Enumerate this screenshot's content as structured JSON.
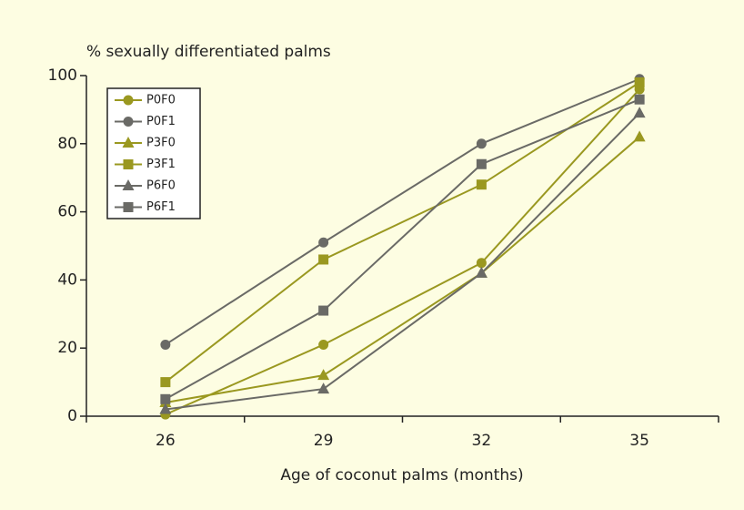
{
  "chart_data": {
    "type": "line",
    "title": "% sexually differentiated palms",
    "x_label": "Age of coconut palms (months)",
    "categories": [
      "26",
      "29",
      "32",
      "35"
    ],
    "ylim": [
      0,
      100
    ],
    "yticks": [
      0,
      20,
      40,
      60,
      80,
      100
    ],
    "grid": false,
    "legend": "upper left",
    "series": [
      {
        "name": "P0F0",
        "color": "#9a9820",
        "marker": "circle",
        "values": [
          0.5,
          21,
          45,
          96
        ]
      },
      {
        "name": "P0F1",
        "color": "#6a6a66",
        "marker": "circle",
        "values": [
          21,
          51,
          80,
          99
        ]
      },
      {
        "name": "P3F0",
        "color": "#9a9820",
        "marker": "triangle",
        "values": [
          4,
          12,
          42,
          82
        ]
      },
      {
        "name": "P3F1",
        "color": "#9a9820",
        "marker": "square",
        "values": [
          10,
          46,
          68,
          98
        ]
      },
      {
        "name": "P6F0",
        "color": "#6a6a66",
        "marker": "triangle",
        "values": [
          2,
          8,
          42,
          89
        ]
      },
      {
        "name": "P6F1",
        "color": "#6a6a66",
        "marker": "square",
        "values": [
          5,
          31,
          74,
          93
        ]
      }
    ]
  }
}
